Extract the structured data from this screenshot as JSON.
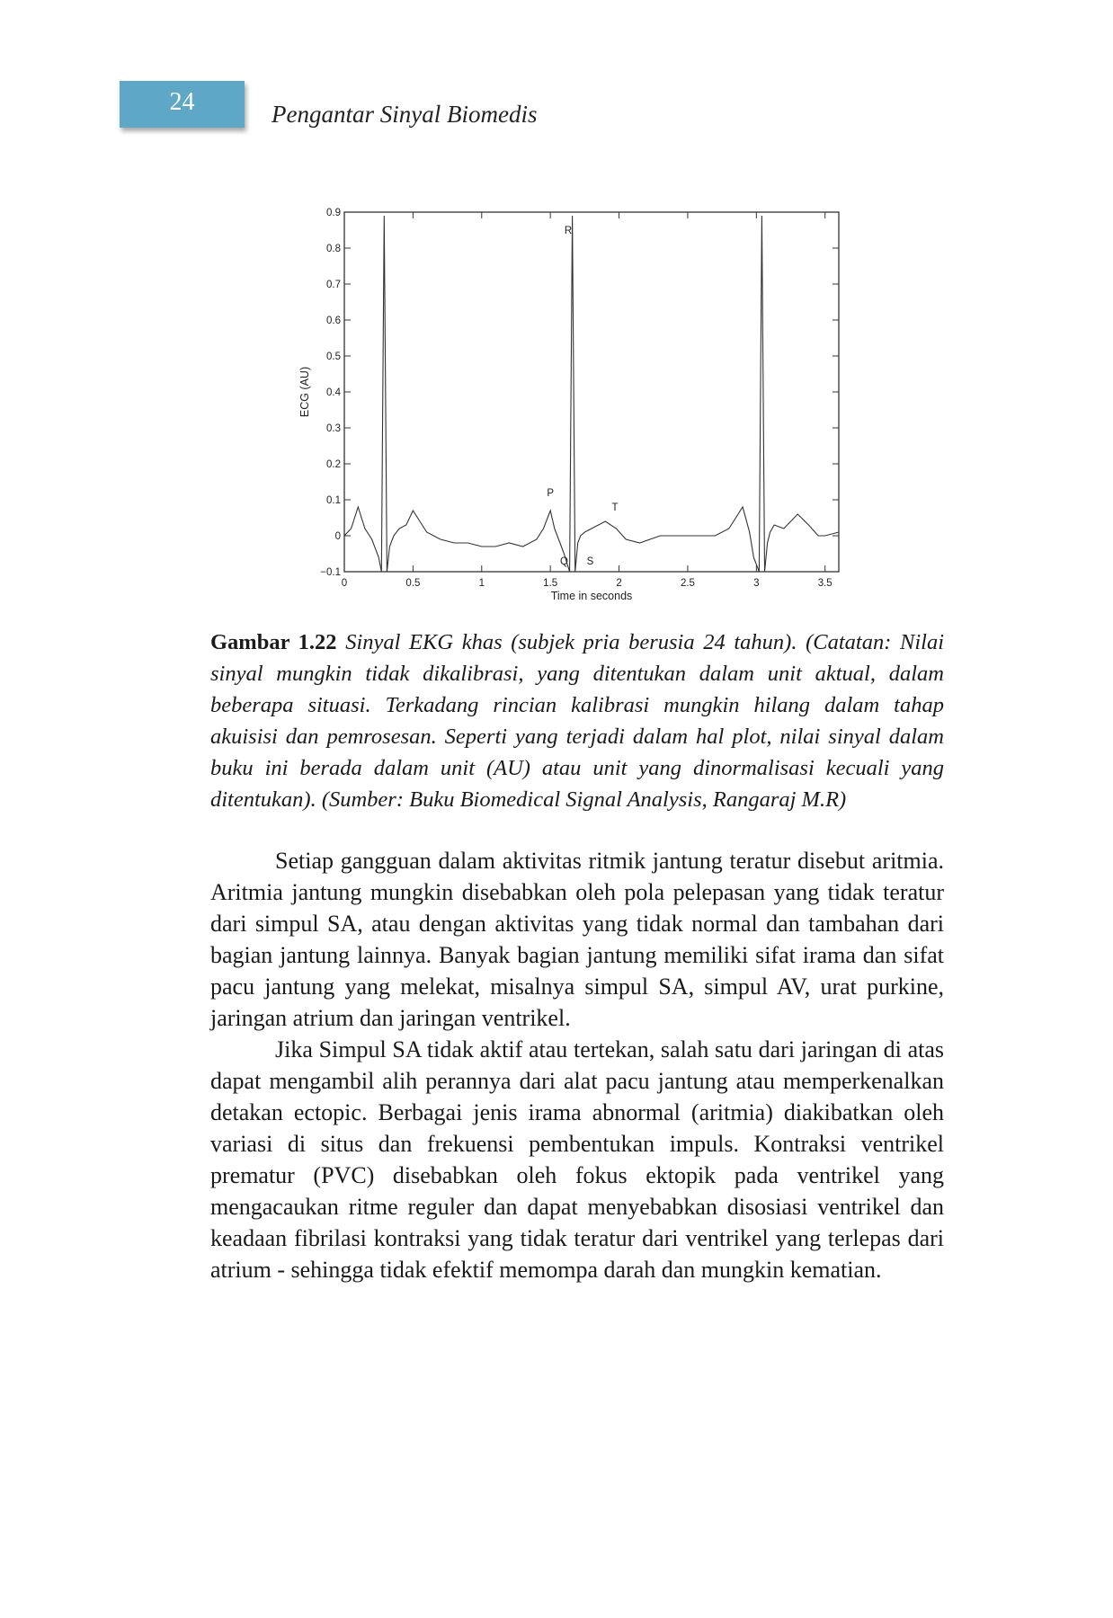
{
  "header": {
    "page_number": "24",
    "running_title": "Pengantar Sinyal Biomedis"
  },
  "chart_data": {
    "type": "line",
    "xlabel": "Time in seconds",
    "ylabel": "ECG (AU)",
    "xlim": [
      0,
      3.6
    ],
    "ylim": [
      -0.1,
      0.9
    ],
    "xticks": [
      0,
      0.5,
      1,
      1.5,
      2,
      2.5,
      3,
      3.5
    ],
    "yticks": [
      -0.1,
      0,
      0.1,
      0.2,
      0.3,
      0.4,
      0.5,
      0.6,
      0.7,
      0.8,
      0.9
    ],
    "xtick_labels": [
      "0",
      "0.5",
      "1",
      "1.5",
      "2",
      "2.5",
      "3",
      "3.5"
    ],
    "ytick_labels": [
      "−0.1",
      "0",
      "0.1",
      "0.2",
      "0.3",
      "0.4",
      "0.5",
      "0.6",
      "0.7",
      "0.8",
      "0.9"
    ],
    "grid": false,
    "series": [
      {
        "x": [
          0,
          0.05,
          0.1,
          0.15,
          0.2,
          0.25,
          0.27,
          0.29,
          0.31,
          0.33,
          0.36,
          0.4,
          0.45,
          0.5,
          0.55,
          0.6,
          0.7,
          0.8,
          0.9,
          1.0,
          1.1,
          1.2,
          1.3,
          1.4,
          1.45,
          1.5,
          1.53,
          1.57,
          1.6,
          1.64,
          1.66,
          1.68,
          1.7,
          1.72,
          1.75,
          1.8,
          1.9,
          1.98,
          2.05,
          2.15,
          2.3,
          2.5,
          2.7,
          2.8,
          2.9,
          2.95,
          2.98,
          3.02,
          3.04,
          3.06,
          3.08,
          3.1,
          3.13,
          3.2,
          3.3,
          3.38,
          3.45,
          3.5,
          3.6
        ],
        "y": [
          0.0,
          0.02,
          0.08,
          0.02,
          -0.01,
          -0.06,
          -0.1,
          0.89,
          -0.1,
          -0.03,
          0.0,
          0.02,
          0.03,
          0.07,
          0.04,
          0.01,
          -0.01,
          -0.02,
          -0.02,
          -0.03,
          -0.03,
          -0.02,
          -0.03,
          -0.01,
          0.02,
          0.07,
          0.02,
          -0.02,
          -0.05,
          -0.1,
          0.89,
          -0.1,
          -0.02,
          0.0,
          0.01,
          0.02,
          0.04,
          0.02,
          -0.01,
          -0.02,
          0.0,
          0.0,
          0.0,
          0.02,
          0.08,
          0.01,
          -0.06,
          -0.1,
          0.89,
          -0.1,
          -0.02,
          0.01,
          0.03,
          0.02,
          0.06,
          0.03,
          0.0,
          0.0,
          0.01
        ]
      }
    ],
    "annotations": [
      {
        "text": "R",
        "x": 1.63,
        "y": 0.84
      },
      {
        "text": "P",
        "x": 1.5,
        "y": 0.11
      },
      {
        "text": "T",
        "x": 1.97,
        "y": 0.07
      },
      {
        "text": "Q",
        "x": 1.6,
        "y": -0.08
      },
      {
        "text": "S",
        "x": 1.79,
        "y": -0.08
      }
    ]
  },
  "caption": {
    "label": "Gambar 1.22",
    "text": "Sinyal EKG khas (subjek pria berusia 24 tahun). (Catatan: Nilai sinyal mungkin tidak dikalibrasi, yang ditentukan dalam unit aktual, dalam beberapa situasi. Terkadang rincian kalibrasi mungkin hilang dalam tahap akuisisi dan pemrosesan. Seperti yang terjadi dalam hal plot, nilai sinyal dalam buku ini berada dalam unit (AU) atau unit yang dinormalisasi kecuali yang ditentukan). (Sumber: Buku Biomedical Signal Analysis, Rangaraj M.R)"
  },
  "body": {
    "paragraph_1": "Setiap gangguan dalam aktivitas ritmik jantung teratur disebut aritmia. Aritmia jantung mungkin disebabkan oleh pola pelepasan yang tidak teratur dari simpul SA, atau dengan aktivitas yang tidak normal dan tambahan dari bagian jantung lainnya. Banyak bagian jantung memiliki sifat irama dan sifat pacu jantung yang melekat, misalnya simpul SA, simpul AV, urat purkine, jaringan atrium dan jaringan ventrikel.",
    "paragraph_2": "Jika Simpul SA tidak aktif atau tertekan, salah satu dari jaringan di atas dapat mengambil alih perannya dari alat pacu jantung atau memperkenalkan detakan ectopic. Berbagai jenis irama abnormal (aritmia) diakibatkan oleh variasi di situs dan frekuensi pembentukan impuls. Kontraksi ventrikel prematur (PVC) disebabkan oleh fokus ektopik pada ventrikel yang mengacaukan ritme reguler dan dapat menyebabkan disosiasi ventrikel dan keadaan fibrilasi kontraksi yang tidak teratur dari ventrikel yang terlepas dari atrium - sehingga tidak efektif memompa darah dan mungkin kematian."
  }
}
